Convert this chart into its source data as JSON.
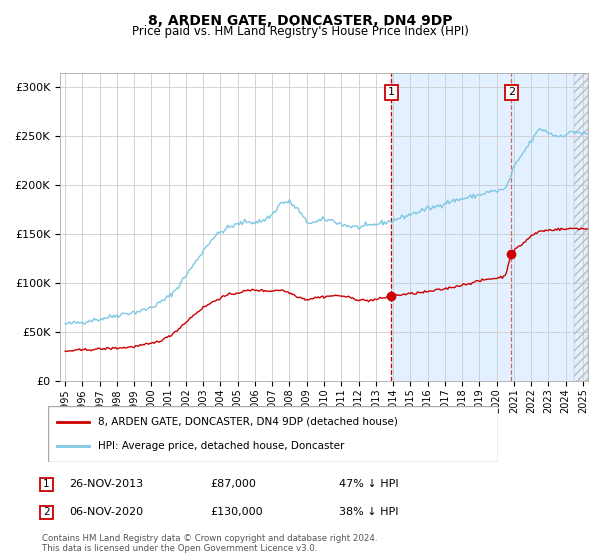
{
  "title": "8, ARDEN GATE, DONCASTER, DN4 9DP",
  "subtitle": "Price paid vs. HM Land Registry's House Price Index (HPI)",
  "ylabel_ticks": [
    "£0",
    "£50K",
    "£100K",
    "£150K",
    "£200K",
    "£250K",
    "£300K"
  ],
  "ytick_values": [
    0,
    50000,
    100000,
    150000,
    200000,
    250000,
    300000
  ],
  "ylim": [
    0,
    315000
  ],
  "xlim_start": 1994.7,
  "xlim_end": 2025.3,
  "hpi_color": "#7ec8e3",
  "price_color": "#cc0000",
  "marker_color": "#cc0000",
  "grid_color": "#cccccc",
  "bg_color": "#ffffff",
  "plot_bg": "#ffffff",
  "sale1_date": "26-NOV-2013",
  "sale1_price": "£87,000",
  "sale1_pct": "47% ↓ HPI",
  "sale1_x": 2013.9,
  "sale1_y": 87000,
  "sale2_date": "06-NOV-2020",
  "sale2_price": "£130,000",
  "sale2_pct": "38% ↓ HPI",
  "sale2_x": 2020.85,
  "sale2_y": 130000,
  "legend_label1": "8, ARDEN GATE, DONCASTER, DN4 9DP (detached house)",
  "legend_label2": "HPI: Average price, detached house, Doncaster",
  "footer": "Contains HM Land Registry data © Crown copyright and database right 2024.\nThis data is licensed under the Open Government Licence v3.0.",
  "shade_start": 2013.9,
  "shade_end": 2025.3,
  "hatch_start": 2024.5,
  "hatch_end": 2025.3,
  "hpi_key_points": [
    [
      1995.0,
      58000
    ],
    [
      1995.5,
      59000
    ],
    [
      1996.0,
      60000
    ],
    [
      1996.5,
      62000
    ],
    [
      1997.0,
      63000
    ],
    [
      1997.5,
      65000
    ],
    [
      1998.0,
      67000
    ],
    [
      1998.5,
      69000
    ],
    [
      1999.0,
      70000
    ],
    [
      1999.5,
      72000
    ],
    [
      2000.0,
      75000
    ],
    [
      2000.5,
      80000
    ],
    [
      2001.0,
      86000
    ],
    [
      2001.5,
      95000
    ],
    [
      2002.0,
      108000
    ],
    [
      2002.5,
      120000
    ],
    [
      2003.0,
      133000
    ],
    [
      2003.5,
      145000
    ],
    [
      2004.0,
      152000
    ],
    [
      2004.5,
      157000
    ],
    [
      2005.0,
      160000
    ],
    [
      2005.5,
      163000
    ],
    [
      2006.0,
      162000
    ],
    [
      2006.5,
      164000
    ],
    [
      2007.0,
      170000
    ],
    [
      2007.5,
      182000
    ],
    [
      2008.0,
      183000
    ],
    [
      2008.5,
      175000
    ],
    [
      2009.0,
      162000
    ],
    [
      2009.5,
      162000
    ],
    [
      2010.0,
      165000
    ],
    [
      2010.5,
      164000
    ],
    [
      2011.0,
      160000
    ],
    [
      2011.5,
      158000
    ],
    [
      2012.0,
      157000
    ],
    [
      2012.5,
      158000
    ],
    [
      2013.0,
      160000
    ],
    [
      2013.5,
      162000
    ],
    [
      2013.9,
      163000
    ],
    [
      2014.0,
      164000
    ],
    [
      2014.5,
      167000
    ],
    [
      2015.0,
      170000
    ],
    [
      2015.5,
      173000
    ],
    [
      2016.0,
      176000
    ],
    [
      2016.5,
      178000
    ],
    [
      2017.0,
      182000
    ],
    [
      2017.5,
      184000
    ],
    [
      2018.0,
      186000
    ],
    [
      2018.5,
      188000
    ],
    [
      2019.0,
      190000
    ],
    [
      2019.5,
      193000
    ],
    [
      2020.0,
      194000
    ],
    [
      2020.5,
      196000
    ],
    [
      2020.85,
      210000
    ],
    [
      2021.0,
      218000
    ],
    [
      2021.5,
      232000
    ],
    [
      2022.0,
      245000
    ],
    [
      2022.5,
      258000
    ],
    [
      2023.0,
      254000
    ],
    [
      2023.5,
      250000
    ],
    [
      2024.0,
      252000
    ],
    [
      2024.5,
      255000
    ],
    [
      2025.0,
      253000
    ],
    [
      2025.3,
      252000
    ]
  ],
  "price_key_points": [
    [
      1995.0,
      30000
    ],
    [
      1995.5,
      31000
    ],
    [
      1996.0,
      31500
    ],
    [
      1996.5,
      32000
    ],
    [
      1997.0,
      32500
    ],
    [
      1997.5,
      33000
    ],
    [
      1998.0,
      33500
    ],
    [
      1998.5,
      34000
    ],
    [
      1999.0,
      35000
    ],
    [
      1999.5,
      36500
    ],
    [
      2000.0,
      38000
    ],
    [
      2000.5,
      41000
    ],
    [
      2001.0,
      45000
    ],
    [
      2001.5,
      52000
    ],
    [
      2002.0,
      60000
    ],
    [
      2002.5,
      68000
    ],
    [
      2003.0,
      75000
    ],
    [
      2003.5,
      80000
    ],
    [
      2004.0,
      85000
    ],
    [
      2004.5,
      88000
    ],
    [
      2005.0,
      90000
    ],
    [
      2005.5,
      92000
    ],
    [
      2006.0,
      93000
    ],
    [
      2006.5,
      92000
    ],
    [
      2007.0,
      92000
    ],
    [
      2007.5,
      93000
    ],
    [
      2008.0,
      90000
    ],
    [
      2008.5,
      86000
    ],
    [
      2009.0,
      83000
    ],
    [
      2009.5,
      85000
    ],
    [
      2010.0,
      86000
    ],
    [
      2010.5,
      87000
    ],
    [
      2011.0,
      87000
    ],
    [
      2011.5,
      85000
    ],
    [
      2012.0,
      83000
    ],
    [
      2012.5,
      82000
    ],
    [
      2013.0,
      83000
    ],
    [
      2013.5,
      85000
    ],
    [
      2013.9,
      87000
    ],
    [
      2014.0,
      87500
    ],
    [
      2014.5,
      88000
    ],
    [
      2015.0,
      89000
    ],
    [
      2015.5,
      90000
    ],
    [
      2016.0,
      91000
    ],
    [
      2016.5,
      92500
    ],
    [
      2017.0,
      94000
    ],
    [
      2017.5,
      96000
    ],
    [
      2018.0,
      98000
    ],
    [
      2018.5,
      100000
    ],
    [
      2019.0,
      102000
    ],
    [
      2019.5,
      104000
    ],
    [
      2020.0,
      105000
    ],
    [
      2020.5,
      107000
    ],
    [
      2020.85,
      130000
    ],
    [
      2021.0,
      133000
    ],
    [
      2021.5,
      140000
    ],
    [
      2022.0,
      148000
    ],
    [
      2022.5,
      153000
    ],
    [
      2023.0,
      154000
    ],
    [
      2023.5,
      155000
    ],
    [
      2024.0,
      155000
    ],
    [
      2024.5,
      156000
    ],
    [
      2025.0,
      155500
    ],
    [
      2025.3,
      155000
    ]
  ]
}
